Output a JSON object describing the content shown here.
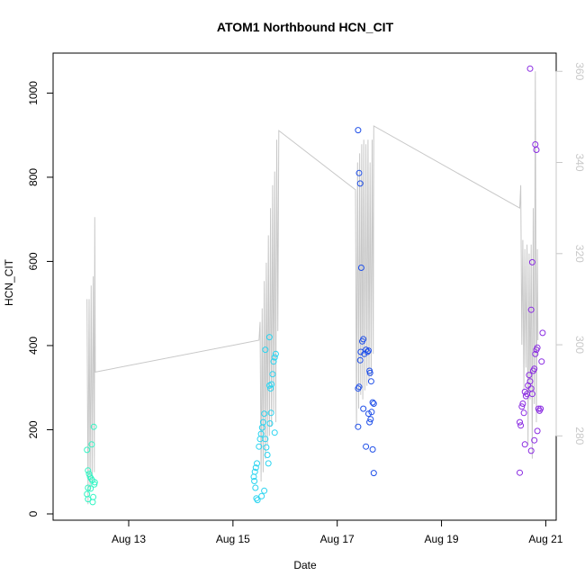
{
  "chart_data": {
    "type": "scatter",
    "title": "ATOM1 Northbound HCN_CIT",
    "xlabel": "Date",
    "ylabel": "HCN_CIT",
    "x_tick_labels": [
      "Aug 13",
      "Aug 15",
      "Aug 17",
      "Aug 19",
      "Aug 21"
    ],
    "x_tick_values": [
      13,
      15,
      17,
      19,
      21
    ],
    "xlim": [
      11.55,
      21.2
    ],
    "ylim": [
      -15,
      1095
    ],
    "y_ticks": [
      0,
      200,
      400,
      600,
      800,
      1000
    ],
    "y2lim": [
      261.5,
      364
    ],
    "y2_ticks": [
      280,
      300,
      320,
      340,
      360
    ],
    "grid": false,
    "colors": {
      "line": "#c8c8c8",
      "day12": "#33f5c4",
      "day15": "#2ad4f0",
      "day17": "#1f4fe8",
      "day20": "#8a2be2"
    },
    "series": [
      {
        "color_key": "day12",
        "points": [
          [
            12.2,
            152
          ],
          [
            12.22,
            103
          ],
          [
            12.24,
            95
          ],
          [
            12.26,
            88
          ],
          [
            12.28,
            84
          ],
          [
            12.3,
            80
          ],
          [
            12.22,
            62
          ],
          [
            12.2,
            47
          ],
          [
            12.22,
            35
          ],
          [
            12.31,
            28
          ],
          [
            12.27,
            60
          ],
          [
            12.32,
            40
          ],
          [
            12.34,
            70
          ],
          [
            12.35,
            75
          ],
          [
            12.29,
            165
          ],
          [
            12.33,
            207
          ]
        ]
      },
      {
        "color_key": "day15",
        "points": [
          [
            15.4,
            88
          ],
          [
            15.42,
            100
          ],
          [
            15.44,
            110
          ],
          [
            15.46,
            120
          ],
          [
            15.41,
            78
          ],
          [
            15.43,
            62
          ],
          [
            15.45,
            37
          ],
          [
            15.47,
            33
          ],
          [
            15.5,
            160
          ],
          [
            15.52,
            178
          ],
          [
            15.54,
            190
          ],
          [
            15.56,
            205
          ],
          [
            15.58,
            218
          ],
          [
            15.6,
            238
          ],
          [
            15.62,
            178
          ],
          [
            15.64,
            158
          ],
          [
            15.66,
            140
          ],
          [
            15.68,
            120
          ],
          [
            15.6,
            55
          ],
          [
            15.55,
            42
          ],
          [
            15.7,
            305
          ],
          [
            15.72,
            298
          ],
          [
            15.74,
            308
          ],
          [
            15.76,
            332
          ],
          [
            15.78,
            362
          ],
          [
            15.8,
            372
          ],
          [
            15.82,
            380
          ],
          [
            15.7,
            420
          ],
          [
            15.62,
            390
          ],
          [
            15.71,
            215
          ],
          [
            15.73,
            240
          ],
          [
            15.8,
            193
          ]
        ]
      },
      {
        "color_key": "day17",
        "points": [
          [
            17.4,
            912
          ],
          [
            17.42,
            810
          ],
          [
            17.44,
            785
          ],
          [
            17.46,
            585
          ],
          [
            17.48,
            410
          ],
          [
            17.5,
            415
          ],
          [
            17.45,
            385
          ],
          [
            17.52,
            380
          ],
          [
            17.55,
            390
          ],
          [
            17.58,
            385
          ],
          [
            17.6,
            388
          ],
          [
            17.62,
            340
          ],
          [
            17.63,
            335
          ],
          [
            17.65,
            315
          ],
          [
            17.4,
            298
          ],
          [
            17.42,
            302
          ],
          [
            17.44,
            365
          ],
          [
            17.5,
            250
          ],
          [
            17.6,
            238
          ],
          [
            17.62,
            218
          ],
          [
            17.64,
            225
          ],
          [
            17.66,
            242
          ],
          [
            17.68,
            265
          ],
          [
            17.7,
            262
          ],
          [
            17.4,
            207
          ],
          [
            17.55,
            160
          ],
          [
            17.68,
            153
          ],
          [
            17.7,
            97
          ]
        ]
      },
      {
        "color_key": "day20",
        "points": [
          [
            20.5,
            218
          ],
          [
            20.52,
            210
          ],
          [
            20.54,
            255
          ],
          [
            20.56,
            262
          ],
          [
            20.58,
            240
          ],
          [
            20.6,
            290
          ],
          [
            20.62,
            280
          ],
          [
            20.64,
            285
          ],
          [
            20.66,
            305
          ],
          [
            20.68,
            330
          ],
          [
            20.7,
            315
          ],
          [
            20.72,
            298
          ],
          [
            20.74,
            285
          ],
          [
            20.76,
            340
          ],
          [
            20.78,
            345
          ],
          [
            20.8,
            380
          ],
          [
            20.82,
            390
          ],
          [
            20.84,
            395
          ],
          [
            20.86,
            250
          ],
          [
            20.88,
            245
          ],
          [
            20.9,
            250
          ],
          [
            20.92,
            362
          ],
          [
            20.94,
            430
          ],
          [
            20.72,
            485
          ],
          [
            20.74,
            598
          ],
          [
            20.7,
            1058
          ],
          [
            20.8,
            878
          ],
          [
            20.82,
            865
          ],
          [
            20.84,
            197
          ],
          [
            20.6,
            165
          ],
          [
            20.5,
            98
          ],
          [
            20.78,
            175
          ],
          [
            20.72,
            150
          ]
        ]
      }
    ],
    "line_series": {
      "axis": "right",
      "points": [
        [
          12.2,
          310
        ],
        [
          12.22,
          265
        ],
        [
          12.24,
          310
        ],
        [
          12.26,
          268
        ],
        [
          12.28,
          313
        ],
        [
          12.3,
          270
        ],
        [
          12.32,
          315
        ],
        [
          12.34,
          272
        ],
        [
          12.35,
          328
        ],
        [
          12.36,
          294
        ],
        [
          15.5,
          301
        ],
        [
          15.52,
          305
        ],
        [
          15.54,
          270
        ],
        [
          15.56,
          308
        ],
        [
          15.58,
          272
        ],
        [
          15.6,
          314
        ],
        [
          15.62,
          275
        ],
        [
          15.64,
          318
        ],
        [
          15.66,
          278
        ],
        [
          15.68,
          324
        ],
        [
          15.7,
          280
        ],
        [
          15.72,
          330
        ],
        [
          15.74,
          282
        ],
        [
          15.76,
          335
        ],
        [
          15.78,
          285
        ],
        [
          15.8,
          338
        ],
        [
          15.82,
          283
        ],
        [
          15.84,
          345
        ],
        [
          15.86,
          303
        ],
        [
          15.88,
          347
        ],
        [
          17.35,
          334
        ],
        [
          17.37,
          282
        ],
        [
          17.39,
          340
        ],
        [
          17.41,
          286
        ],
        [
          17.43,
          342
        ],
        [
          17.45,
          289
        ],
        [
          17.47,
          344
        ],
        [
          17.49,
          288
        ],
        [
          17.51,
          345
        ],
        [
          17.53,
          290
        ],
        [
          17.55,
          344
        ],
        [
          17.57,
          291
        ],
        [
          17.59,
          345
        ],
        [
          17.61,
          292
        ],
        [
          17.63,
          340
        ],
        [
          17.65,
          293
        ],
        [
          17.67,
          345
        ],
        [
          17.69,
          298
        ],
        [
          17.7,
          348
        ],
        [
          20.5,
          330
        ],
        [
          20.52,
          335
        ],
        [
          20.54,
          300
        ],
        [
          20.56,
          323
        ],
        [
          20.58,
          290
        ],
        [
          20.6,
          321
        ],
        [
          20.62,
          295
        ],
        [
          20.64,
          322
        ],
        [
          20.66,
          278
        ],
        [
          20.68,
          320
        ],
        [
          20.7,
          288
        ],
        [
          20.72,
          322
        ],
        [
          20.74,
          275
        ],
        [
          20.76,
          330
        ],
        [
          20.78,
          287
        ],
        [
          20.8,
          360
        ],
        [
          20.82,
          283
        ],
        [
          20.84,
          321
        ],
        [
          20.85,
          301
        ]
      ]
    }
  }
}
